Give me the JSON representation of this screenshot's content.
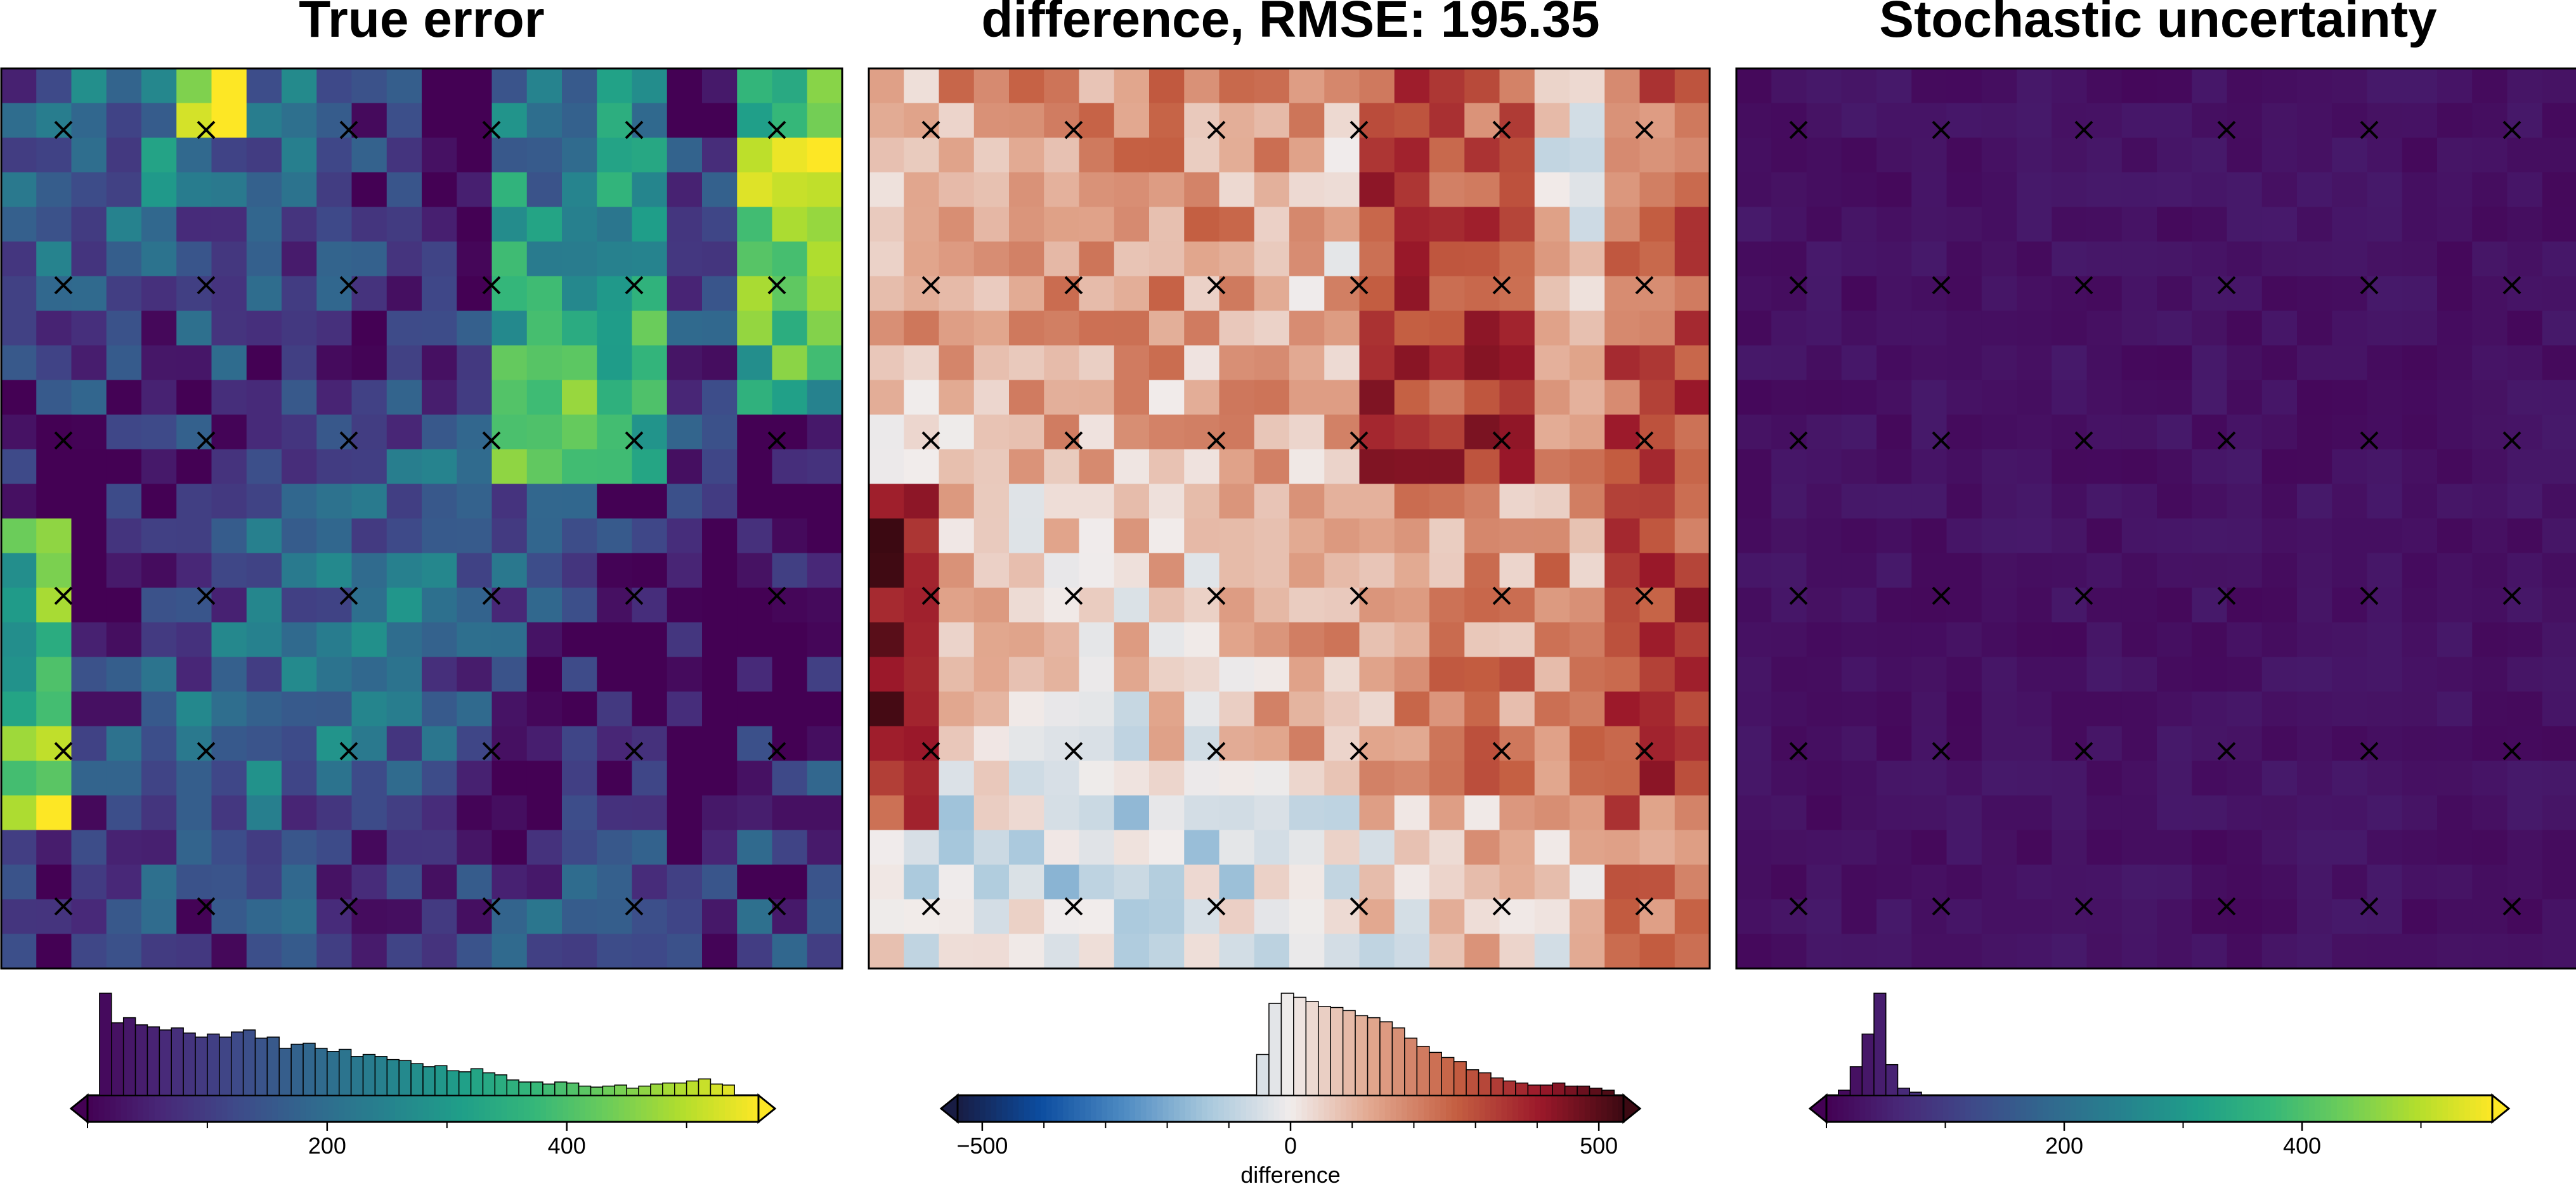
{
  "chart_data": [
    {
      "type": "heatmap",
      "title": "True error",
      "colormap": "viridis",
      "clim": [
        0,
        560
      ],
      "grid_size": [
        26,
        24
      ],
      "sample_markers": {
        "symbol": "×",
        "cols": 6,
        "rows": 6
      },
      "colorbar": {
        "ticks": [
          200,
          400
        ],
        "label": "",
        "extend": "both",
        "histogram": true,
        "histogram_values": [
          1.0,
          0.71,
          0.76,
          0.69,
          0.67,
          0.64,
          0.66,
          0.61,
          0.57,
          0.6,
          0.57,
          0.62,
          0.64,
          0.56,
          0.57,
          0.46,
          0.5,
          0.51,
          0.46,
          0.43,
          0.45,
          0.38,
          0.4,
          0.38,
          0.35,
          0.34,
          0.31,
          0.28,
          0.29,
          0.24,
          0.23,
          0.26,
          0.22,
          0.2,
          0.15,
          0.13,
          0.13,
          0.11,
          0.13,
          0.12,
          0.09,
          0.08,
          0.09,
          0.1,
          0.07,
          0.09,
          0.11,
          0.12,
          0.12,
          0.14,
          0.16,
          0.11,
          0.1
        ]
      }
    },
    {
      "type": "heatmap",
      "title": "difference, RMSE: 195.35",
      "colormap": "balance",
      "clim": [
        -540,
        540
      ],
      "grid_size": [
        26,
        24
      ],
      "sample_markers": {
        "symbol": "×",
        "cols": 6,
        "rows": 6
      },
      "colorbar": {
        "ticks": [
          -500,
          0,
          500
        ],
        "label": "difference",
        "extend": "both",
        "histogram": true,
        "histogram_values": [
          0.4,
          0.9,
          1.0,
          0.96,
          0.92,
          0.87,
          0.86,
          0.83,
          0.78,
          0.76,
          0.72,
          0.66,
          0.56,
          0.48,
          0.42,
          0.37,
          0.33,
          0.25,
          0.22,
          0.17,
          0.14,
          0.12,
          0.1,
          0.1,
          0.12,
          0.09,
          0.09,
          0.07,
          0.05
        ]
      }
    },
    {
      "type": "heatmap",
      "title": "Stochastic uncertainty",
      "colormap": "viridis",
      "clim": [
        0,
        560
      ],
      "grid_size": [
        26,
        24
      ],
      "sample_markers": {
        "symbol": "×",
        "cols": 6,
        "rows": 6
      },
      "colorbar": {
        "ticks": [
          200,
          400
        ],
        "label": "",
        "extend": "both",
        "histogram": true,
        "histogram_values": [
          0.05,
          0.28,
          0.6,
          1.0,
          0.3,
          0.07,
          0.03
        ]
      }
    }
  ]
}
